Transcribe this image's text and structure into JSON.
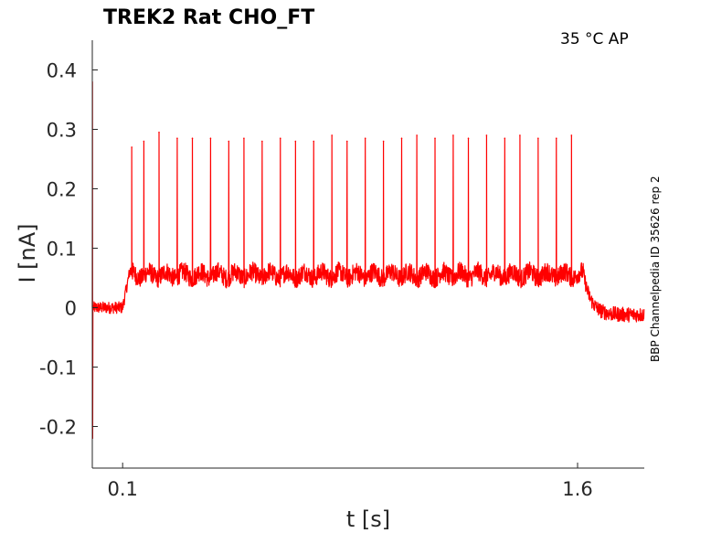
{
  "chart_data": {
    "type": "line",
    "title": "TREK2  Rat  CHO_FT",
    "annotation": "35 °C  AP",
    "side_label": "BBP Channelpedia ID 35626 rep 2",
    "xlabel": "t [s]",
    "ylabel": "I [nA]",
    "xlim": [
      0.0,
      1.82
    ],
    "ylim": [
      -0.27,
      0.45
    ],
    "x_ticks": [
      0.1,
      1.6
    ],
    "x_tick_labels": [
      "0.1",
      "1.6"
    ],
    "y_ticks": [
      0.4,
      0.3,
      0.2,
      0.1,
      0,
      -0.1,
      -0.2
    ],
    "y_tick_labels": [
      "0.4",
      "0.3",
      "0.2",
      "0.1",
      "0",
      "-0.1",
      "-0.2"
    ],
    "grid": false,
    "series_color": "#ff0000",
    "series": [
      {
        "baseline_before": 0.0,
        "step_on_s": 0.1,
        "step_off_s": 1.62,
        "plateau_mean": 0.055,
        "spike_times_s": [
          0.13,
          0.17,
          0.22,
          0.28,
          0.33,
          0.39,
          0.45,
          0.5,
          0.56,
          0.62,
          0.67,
          0.73,
          0.79,
          0.84,
          0.9,
          0.96,
          1.02,
          1.07,
          1.13,
          1.19,
          1.24,
          1.3,
          1.36,
          1.41,
          1.47,
          1.53,
          1.58
        ],
        "spike_peaks": [
          0.27,
          0.28,
          0.295,
          0.285,
          0.285,
          0.285,
          0.28,
          0.285,
          0.28,
          0.285,
          0.28,
          0.28,
          0.29,
          0.28,
          0.285,
          0.28,
          0.285,
          0.29,
          0.285,
          0.29,
          0.285,
          0.29,
          0.285,
          0.29,
          0.285,
          0.285,
          0.29
        ],
        "initial_transient_peak": 0.38,
        "initial_transient_trough": -0.22
      }
    ]
  }
}
